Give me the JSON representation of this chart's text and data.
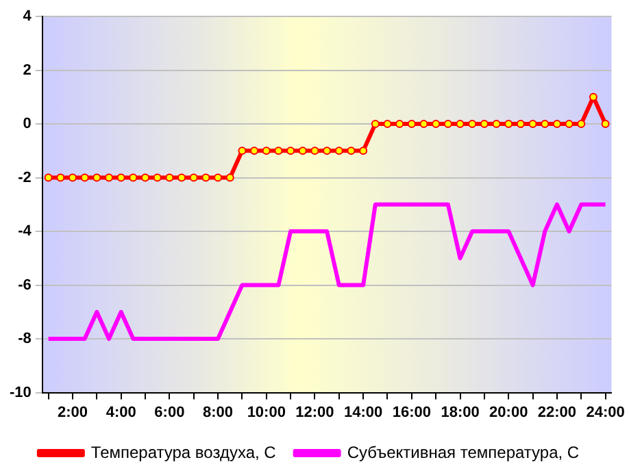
{
  "chart_data": {
    "type": "line",
    "x": [
      1,
      1.5,
      2,
      2.5,
      3,
      3.5,
      4,
      4.5,
      5,
      5.5,
      6,
      6.5,
      7,
      7.5,
      8,
      8.5,
      9,
      9.5,
      10,
      10.5,
      11,
      11.5,
      12,
      12.5,
      13,
      13.5,
      14,
      14.5,
      15,
      15.5,
      16,
      16.5,
      17,
      17.5,
      18,
      18.5,
      19,
      19.5,
      20,
      20.5,
      21,
      21.5,
      22,
      22.5,
      23,
      23.5,
      24
    ],
    "series": [
      {
        "name": "Температура воздуха, С",
        "color": "#ff0000",
        "marker": "circle",
        "values": [
          -2,
          -2,
          -2,
          -2,
          -2,
          -2,
          -2,
          -2,
          -2,
          -2,
          -2,
          -2,
          -2,
          -2,
          -2,
          -2,
          -1,
          -1,
          -1,
          -1,
          -1,
          -1,
          -1,
          -1,
          -1,
          -1,
          -1,
          0,
          0,
          0,
          0,
          0,
          0,
          0,
          0,
          0,
          0,
          0,
          0,
          0,
          0,
          0,
          0,
          0,
          0,
          1,
          0
        ]
      },
      {
        "name": "Субъективная температура, С",
        "color": "#ff00ff",
        "marker": "none",
        "values": [
          -8,
          -8,
          -8,
          -8,
          -7,
          -8,
          -7,
          -8,
          -8,
          -8,
          -8,
          -8,
          -8,
          -8,
          -8,
          -7,
          -6,
          -6,
          -6,
          -6,
          -4,
          -4,
          -4,
          -4,
          -6,
          -6,
          -6,
          -3,
          -3,
          -3,
          -3,
          -3,
          -3,
          -3,
          -5,
          -4,
          -4,
          -4,
          -4,
          -5,
          -6,
          -4,
          -3,
          -4,
          -3,
          -3,
          -3
        ]
      }
    ],
    "xlim": [
      0.75,
      24.25
    ],
    "xticks": [
      {
        "value": 1,
        "label": null
      },
      {
        "value": 2,
        "label": "2:00"
      },
      {
        "value": 3,
        "label": null
      },
      {
        "value": 4,
        "label": "4:00"
      },
      {
        "value": 5,
        "label": null
      },
      {
        "value": 6,
        "label": "6:00"
      },
      {
        "value": 7,
        "label": null
      },
      {
        "value": 8,
        "label": "8:00"
      },
      {
        "value": 9,
        "label": null
      },
      {
        "value": 10,
        "label": "10:00"
      },
      {
        "value": 11,
        "label": null
      },
      {
        "value": 12,
        "label": "12:00"
      },
      {
        "value": 13,
        "label": null
      },
      {
        "value": 14,
        "label": "14:00"
      },
      {
        "value": 15,
        "label": null
      },
      {
        "value": 16,
        "label": "16:00"
      },
      {
        "value": 17,
        "label": null
      },
      {
        "value": 18,
        "label": "18:00"
      },
      {
        "value": 19,
        "label": null
      },
      {
        "value": 20,
        "label": "20:00"
      },
      {
        "value": 21,
        "label": null
      },
      {
        "value": 22,
        "label": "22:00"
      },
      {
        "value": 23,
        "label": null
      },
      {
        "value": 24,
        "label": "24:00"
      }
    ],
    "ylim": [
      -10,
      4
    ],
    "yticks": [
      -10,
      -8,
      -6,
      -4,
      -2,
      0,
      2,
      4
    ],
    "grid": "y",
    "legend": "bottom",
    "line_style": "solid"
  }
}
